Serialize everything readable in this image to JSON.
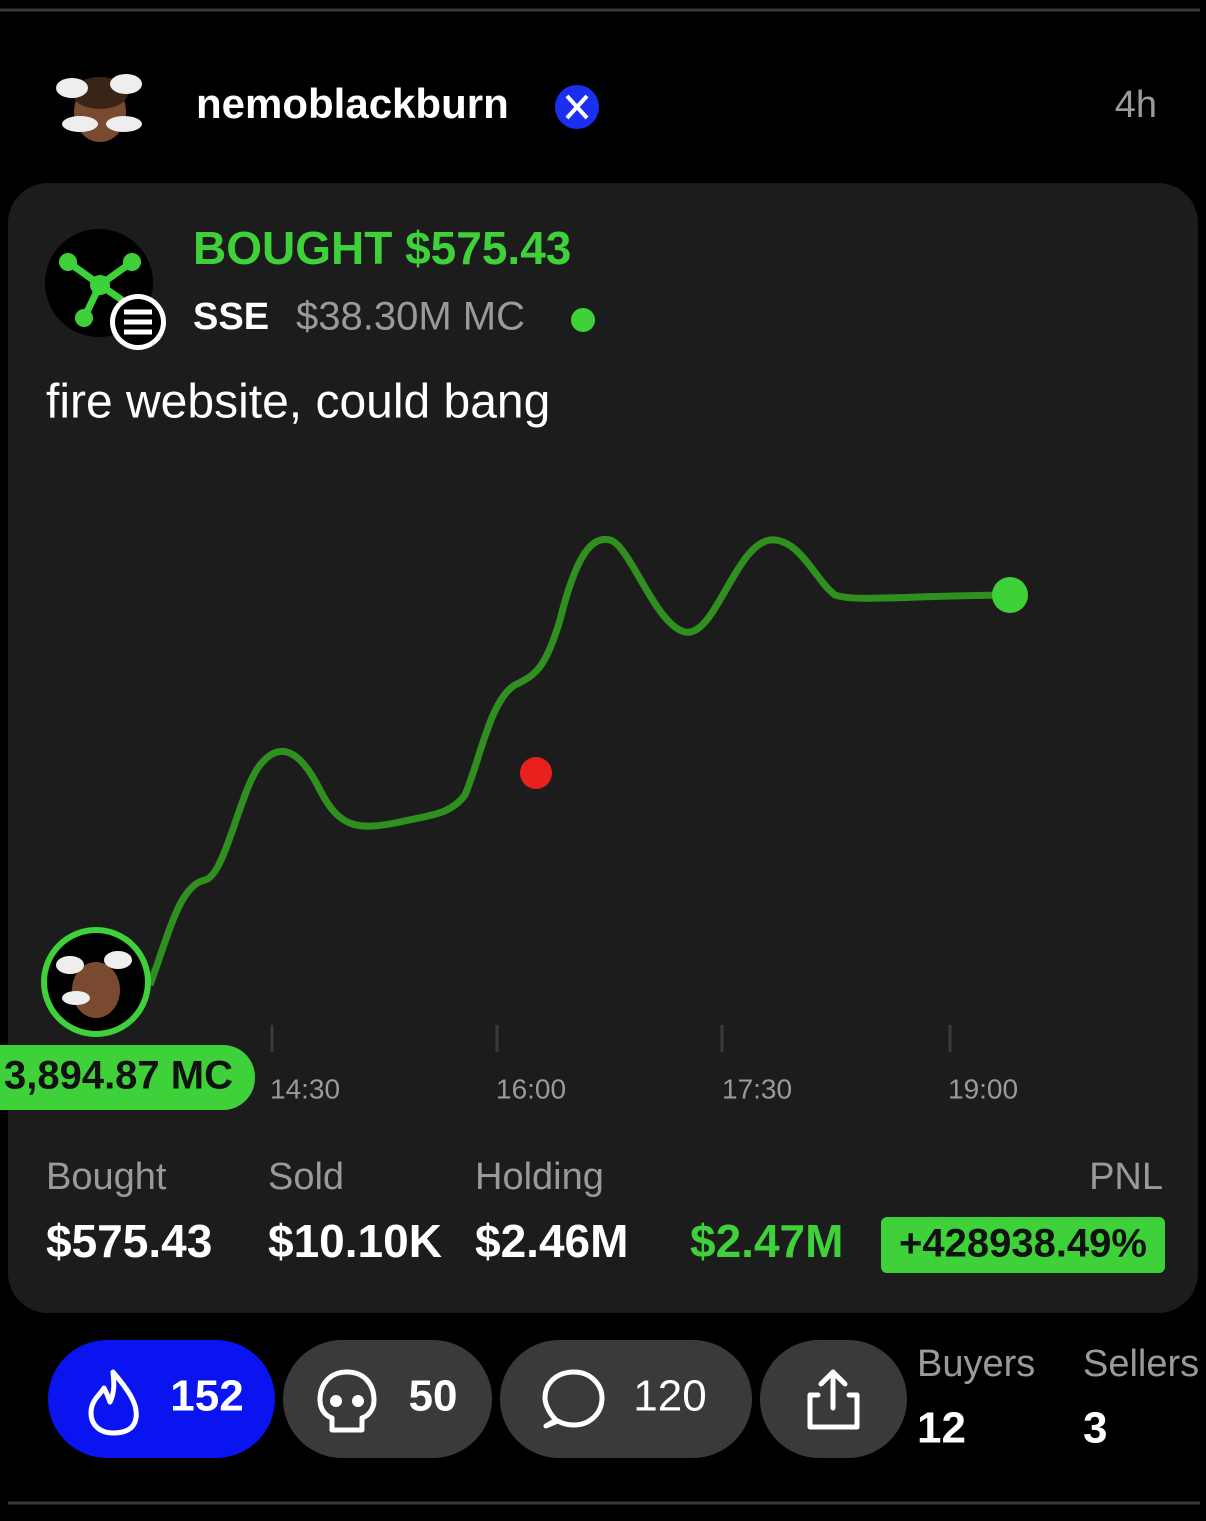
{
  "header": {
    "username": "nemoblackburn",
    "time": "4h"
  },
  "trade": {
    "action": "BOUGHT $575.43",
    "ticker": "SSE",
    "market_cap": "$38.30M MC",
    "comment": "fire website, could bang",
    "entry_label": "3,894.87 MC",
    "time_labels": [
      "14:30",
      "16:00",
      "17:30",
      "19:00"
    ]
  },
  "stats": {
    "bought_label": "Bought",
    "bought": "$575.43",
    "sold_label": "Sold",
    "sold": "$10.10K",
    "holding_label": "Holding",
    "holding": "$2.46M",
    "pnl_label": "PNL",
    "pnl_value": "$2.47M",
    "pnl_percent": "+428938.49%"
  },
  "actions": {
    "fire": "152",
    "skull": "50",
    "comments": "120"
  },
  "counts": {
    "buyers_label": "Buyers",
    "buyers": "12",
    "sellers_label": "Sellers",
    "sellers": "3"
  }
}
